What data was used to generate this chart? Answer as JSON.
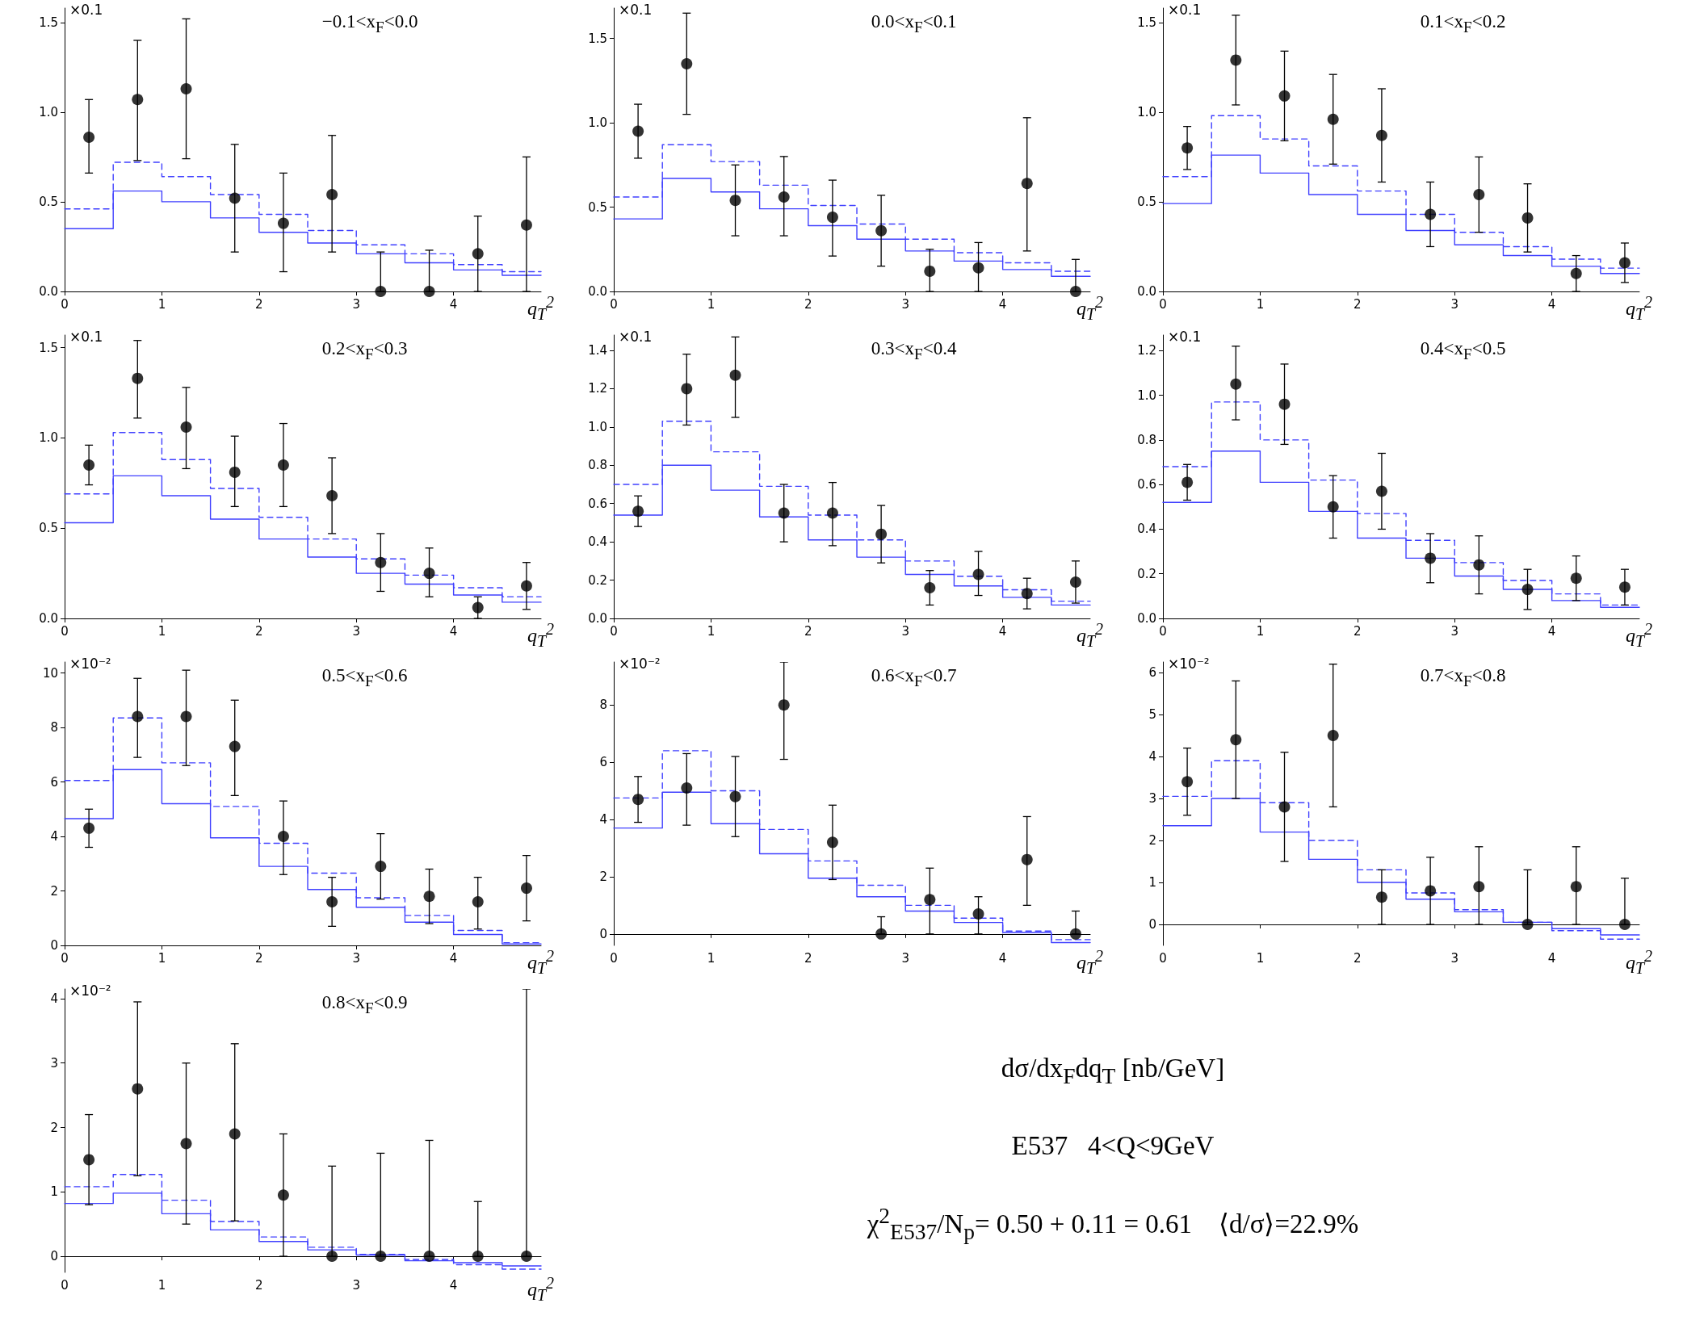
{
  "chart_data": [
    {
      "type": "scatter",
      "title": "−0.1<x$_{F}$<0.0",
      "xlabel": "q$_{T}$$^{2}$",
      "ylabel": "×0.1",
      "xlim": [
        0,
        4.9
      ],
      "xticks": [
        0,
        1,
        2,
        3,
        4
      ],
      "ylim": [
        0,
        1.58
      ],
      "yticks": [
        {
          "value": 0,
          "label": "0.0"
        },
        {
          "value": 0.5,
          "label": "0.5"
        },
        {
          "value": 1,
          "label": "1.0"
        },
        {
          "value": 1.5,
          "label": "1.5"
        }
      ],
      "x": [
        0.25,
        0.75,
        1.25,
        1.75,
        2.25,
        2.75,
        3.25,
        3.75,
        4.25,
        4.75
      ],
      "series": [
        {
          "type": "scatter",
          "marker": "circle",
          "color": "#000000",
          "values": [
            0.86,
            1.07,
            1.13,
            0.52,
            0.38,
            0.54,
            0,
            0,
            0.21,
            0.37
          ],
          "errors": [
            [
              0.66,
              1.07
            ],
            [
              0.73,
              1.4
            ],
            [
              0.74,
              1.52
            ],
            [
              0.22,
              0.82
            ],
            [
              0.11,
              0.66
            ],
            [
              0.22,
              0.87
            ],
            [
              0,
              0.22
            ],
            [
              0,
              0.23
            ],
            [
              0,
              0.42
            ],
            [
              0,
              0.75
            ]
          ]
        },
        {
          "type": "step",
          "color": "#4040ff",
          "line_style": "dashed",
          "x": [
            0,
            0.5,
            1,
            1.5,
            2,
            2.5,
            3,
            3.5,
            4,
            4.5,
            4.9
          ],
          "values": [
            0.46,
            0.72,
            0.64,
            0.54,
            0.43,
            0.34,
            0.26,
            0.21,
            0.15,
            0.11,
            0.11
          ]
        },
        {
          "type": "step",
          "color": "#4040ff",
          "line_style": "solid",
          "x": [
            0,
            0.5,
            1,
            1.5,
            2,
            2.5,
            3,
            3.5,
            4,
            4.5,
            4.9
          ],
          "values": [
            0.35,
            0.56,
            0.5,
            0.41,
            0.33,
            0.27,
            0.21,
            0.16,
            0.12,
            0.09,
            0.09
          ]
        }
      ]
    },
    {
      "type": "scatter",
      "title": "0.0<x$_{F}$<0.1",
      "xlabel": "q$_{T}$$^{2}$",
      "ylabel": "×0.1",
      "xlim": [
        0,
        4.9
      ],
      "xticks": [
        0,
        1,
        2,
        3,
        4
      ],
      "ylim": [
        0,
        1.68
      ],
      "yticks": [
        {
          "value": 0,
          "label": "0.0"
        },
        {
          "value": 0.5,
          "label": "0.5"
        },
        {
          "value": 1,
          "label": "1.0"
        },
        {
          "value": 1.5,
          "label": "1.5"
        }
      ],
      "x": [
        0.25,
        0.75,
        1.25,
        1.75,
        2.25,
        2.75,
        3.25,
        3.75,
        4.25,
        4.75
      ],
      "series": [
        {
          "type": "scatter",
          "marker": "circle",
          "color": "#000000",
          "values": [
            0.95,
            1.35,
            0.54,
            0.56,
            0.44,
            0.36,
            0.12,
            0.14,
            0.64,
            0
          ],
          "errors": [
            [
              0.79,
              1.11
            ],
            [
              1.05,
              1.65
            ],
            [
              0.33,
              0.75
            ],
            [
              0.33,
              0.8
            ],
            [
              0.21,
              0.66
            ],
            [
              0.15,
              0.57
            ],
            [
              0,
              0.25
            ],
            [
              0,
              0.29
            ],
            [
              0.24,
              1.03
            ],
            [
              0,
              0.19
            ]
          ]
        },
        {
          "type": "step",
          "color": "#4040ff",
          "line_style": "dashed",
          "x": [
            0,
            0.5,
            1,
            1.5,
            2,
            2.5,
            3,
            3.5,
            4,
            4.5,
            4.9
          ],
          "values": [
            0.56,
            0.87,
            0.77,
            0.63,
            0.51,
            0.4,
            0.31,
            0.23,
            0.17,
            0.12,
            0.12
          ]
        },
        {
          "type": "step",
          "color": "#4040ff",
          "line_style": "solid",
          "x": [
            0,
            0.5,
            1,
            1.5,
            2,
            2.5,
            3,
            3.5,
            4,
            4.5,
            4.9
          ],
          "values": [
            0.43,
            0.67,
            0.59,
            0.49,
            0.39,
            0.31,
            0.24,
            0.18,
            0.13,
            0.09,
            0.09
          ]
        }
      ]
    },
    {
      "type": "scatter",
      "title": "0.1<x$_{F}$<0.2",
      "xlabel": "q$_{T}$$^{2}$",
      "ylabel": "×0.1",
      "xlim": [
        0,
        4.9
      ],
      "xticks": [
        0,
        1,
        2,
        3,
        4
      ],
      "ylim": [
        0,
        1.58
      ],
      "yticks": [
        {
          "value": 0,
          "label": "0.0"
        },
        {
          "value": 0.5,
          "label": "0.5"
        },
        {
          "value": 1,
          "label": "1.0"
        },
        {
          "value": 1.5,
          "label": "1.5"
        }
      ],
      "x": [
        0.25,
        0.75,
        1.25,
        1.75,
        2.25,
        2.75,
        3.25,
        3.75,
        4.25,
        4.75
      ],
      "series": [
        {
          "type": "scatter",
          "marker": "circle",
          "color": "#000000",
          "values": [
            0.8,
            1.29,
            1.09,
            0.96,
            0.87,
            0.43,
            0.54,
            0.41,
            0.1,
            0.16
          ],
          "errors": [
            [
              0.68,
              0.92
            ],
            [
              1.04,
              1.54
            ],
            [
              0.84,
              1.34
            ],
            [
              0.71,
              1.21
            ],
            [
              0.61,
              1.13
            ],
            [
              0.25,
              0.61
            ],
            [
              0.33,
              0.75
            ],
            [
              0.22,
              0.6
            ],
            [
              0,
              0.2
            ],
            [
              0.05,
              0.27
            ]
          ]
        },
        {
          "type": "step",
          "color": "#4040ff",
          "line_style": "dashed",
          "x": [
            0,
            0.5,
            1,
            1.5,
            2,
            2.5,
            3,
            3.5,
            4,
            4.5,
            4.9
          ],
          "values": [
            0.64,
            0.98,
            0.85,
            0.7,
            0.56,
            0.43,
            0.33,
            0.25,
            0.18,
            0.13,
            0.13
          ]
        },
        {
          "type": "step",
          "color": "#4040ff",
          "line_style": "solid",
          "x": [
            0,
            0.5,
            1,
            1.5,
            2,
            2.5,
            3,
            3.5,
            4,
            4.5,
            4.9
          ],
          "values": [
            0.49,
            0.76,
            0.66,
            0.54,
            0.43,
            0.34,
            0.26,
            0.2,
            0.14,
            0.1,
            0.1
          ]
        }
      ]
    },
    {
      "type": "scatter",
      "title": "0.2<x$_{F}$<0.3",
      "xlabel": "q$_{T}$$^{2}$",
      "ylabel": "×0.1",
      "xlim": [
        0,
        4.9
      ],
      "xticks": [
        0,
        1,
        2,
        3,
        4
      ],
      "ylim": [
        0,
        1.57
      ],
      "yticks": [
        {
          "value": 0,
          "label": "0.0"
        },
        {
          "value": 0.5,
          "label": "0.5"
        },
        {
          "value": 1,
          "label": "1.0"
        },
        {
          "value": 1.5,
          "label": "1.5"
        }
      ],
      "x": [
        0.25,
        0.75,
        1.25,
        1.75,
        2.25,
        2.75,
        3.25,
        3.75,
        4.25,
        4.75
      ],
      "series": [
        {
          "type": "scatter",
          "marker": "circle",
          "color": "#000000",
          "values": [
            0.85,
            1.33,
            1.06,
            0.81,
            0.85,
            0.68,
            0.31,
            0.25,
            0.06,
            0.18
          ],
          "errors": [
            [
              0.74,
              0.96
            ],
            [
              1.11,
              1.54
            ],
            [
              0.83,
              1.28
            ],
            [
              0.62,
              1.01
            ],
            [
              0.62,
              1.08
            ],
            [
              0.47,
              0.89
            ],
            [
              0.15,
              0.47
            ],
            [
              0.12,
              0.39
            ],
            [
              0,
              0.12
            ],
            [
              0.05,
              0.31
            ]
          ]
        },
        {
          "type": "step",
          "color": "#4040ff",
          "line_style": "dashed",
          "x": [
            0,
            0.5,
            1,
            1.5,
            2,
            2.5,
            3,
            3.5,
            4,
            4.5,
            4.9
          ],
          "values": [
            0.69,
            1.03,
            0.88,
            0.72,
            0.56,
            0.44,
            0.33,
            0.24,
            0.17,
            0.12,
            0.12
          ]
        },
        {
          "type": "step",
          "color": "#4040ff",
          "line_style": "solid",
          "x": [
            0,
            0.5,
            1,
            1.5,
            2,
            2.5,
            3,
            3.5,
            4,
            4.5,
            4.9
          ],
          "values": [
            0.53,
            0.79,
            0.68,
            0.55,
            0.44,
            0.34,
            0.25,
            0.19,
            0.13,
            0.09,
            0.09
          ]
        }
      ]
    },
    {
      "type": "scatter",
      "title": "0.3<x$_{F}$<0.4",
      "xlabel": "q$_{T}$$^{2}$",
      "ylabel": "×0.1",
      "xlim": [
        0,
        4.9
      ],
      "xticks": [
        0,
        1,
        2,
        3,
        4
      ],
      "ylim": [
        0,
        1.48
      ],
      "yticks": [
        {
          "value": 0,
          "label": "0.0"
        },
        {
          "value": 0.2,
          "label": "0.2"
        },
        {
          "value": 0.4,
          "label": "0.4"
        },
        {
          "value": 0.6,
          "label": "0.6"
        },
        {
          "value": 0.8,
          "label": "0.8"
        },
        {
          "value": 1,
          "label": "1.0"
        },
        {
          "value": 1.2,
          "label": "1.2"
        },
        {
          "value": 1.4,
          "label": "1.4"
        }
      ],
      "x": [
        0.25,
        0.75,
        1.25,
        1.75,
        2.25,
        2.75,
        3.25,
        3.75,
        4.25,
        4.75
      ],
      "series": [
        {
          "type": "scatter",
          "marker": "circle",
          "color": "#000000",
          "values": [
            0.56,
            1.2,
            1.27,
            0.55,
            0.55,
            0.44,
            0.16,
            0.23,
            0.13,
            0.19
          ],
          "errors": [
            [
              0.48,
              0.64
            ],
            [
              1.01,
              1.38
            ],
            [
              1.05,
              1.47
            ],
            [
              0.4,
              0.7
            ],
            [
              0.38,
              0.71
            ],
            [
              0.29,
              0.59
            ],
            [
              0.07,
              0.25
            ],
            [
              0.12,
              0.35
            ],
            [
              0.05,
              0.21
            ],
            [
              0.08,
              0.3
            ]
          ]
        },
        {
          "type": "step",
          "color": "#4040ff",
          "line_style": "dashed",
          "x": [
            0,
            0.5,
            1,
            1.5,
            2,
            2.5,
            3,
            3.5,
            4,
            4.5,
            4.9
          ],
          "values": [
            0.7,
            1.03,
            0.87,
            0.69,
            0.54,
            0.41,
            0.3,
            0.22,
            0.15,
            0.09,
            0.09
          ]
        },
        {
          "type": "step",
          "color": "#4040ff",
          "line_style": "solid",
          "x": [
            0,
            0.5,
            1,
            1.5,
            2,
            2.5,
            3,
            3.5,
            4,
            4.5,
            4.9
          ],
          "values": [
            0.54,
            0.8,
            0.67,
            0.53,
            0.41,
            0.32,
            0.23,
            0.17,
            0.11,
            0.07,
            0.07
          ]
        }
      ]
    },
    {
      "type": "scatter",
      "title": "0.4<x$_{F}$<0.5",
      "xlabel": "q$_{T}$$^{2}$",
      "ylabel": "×0.1",
      "xlim": [
        0,
        4.9
      ],
      "xticks": [
        0,
        1,
        2,
        3,
        4
      ],
      "ylim": [
        0,
        1.27
      ],
      "yticks": [
        {
          "value": 0,
          "label": "0.0"
        },
        {
          "value": 0.2,
          "label": "0.2"
        },
        {
          "value": 0.4,
          "label": "0.4"
        },
        {
          "value": 0.6,
          "label": "0.6"
        },
        {
          "value": 0.8,
          "label": "0.8"
        },
        {
          "value": 1,
          "label": "1.0"
        },
        {
          "value": 1.2,
          "label": "1.2"
        }
      ],
      "x": [
        0.25,
        0.75,
        1.25,
        1.75,
        2.25,
        2.75,
        3.25,
        3.75,
        4.25,
        4.75
      ],
      "series": [
        {
          "type": "scatter",
          "marker": "circle",
          "color": "#000000",
          "values": [
            0.61,
            1.05,
            0.96,
            0.5,
            0.57,
            0.27,
            0.24,
            0.13,
            0.18,
            0.14
          ],
          "errors": [
            [
              0.53,
              0.69
            ],
            [
              0.89,
              1.22
            ],
            [
              0.78,
              1.14
            ],
            [
              0.36,
              0.64
            ],
            [
              0.4,
              0.74
            ],
            [
              0.16,
              0.38
            ],
            [
              0.11,
              0.37
            ],
            [
              0.04,
              0.22
            ],
            [
              0.08,
              0.28
            ],
            [
              0.06,
              0.22
            ]
          ]
        },
        {
          "type": "step",
          "color": "#4040ff",
          "line_style": "dashed",
          "x": [
            0,
            0.5,
            1,
            1.5,
            2,
            2.5,
            3,
            3.5,
            4,
            4.5,
            4.9
          ],
          "values": [
            0.68,
            0.97,
            0.8,
            0.62,
            0.47,
            0.35,
            0.25,
            0.17,
            0.11,
            0.06,
            0.06
          ]
        },
        {
          "type": "step",
          "color": "#4040ff",
          "line_style": "solid",
          "x": [
            0,
            0.5,
            1,
            1.5,
            2,
            2.5,
            3,
            3.5,
            4,
            4.5,
            4.9
          ],
          "values": [
            0.52,
            0.75,
            0.61,
            0.48,
            0.36,
            0.27,
            0.19,
            0.13,
            0.08,
            0.05,
            0.05
          ]
        }
      ]
    },
    {
      "type": "scatter",
      "title": "0.5<x$_{F}$<0.6",
      "xlabel": "q$_{T}$$^{2}$",
      "ylabel": "×10⁻²",
      "xlim": [
        0,
        4.9
      ],
      "xticks": [
        0,
        1,
        2,
        3,
        4
      ],
      "ylim": [
        0,
        10.4
      ],
      "yticks": [
        0,
        2,
        4,
        6,
        8,
        10
      ],
      "x": [
        0.25,
        0.75,
        1.25,
        1.75,
        2.25,
        2.75,
        3.25,
        3.75,
        4.25,
        4.75
      ],
      "series": [
        {
          "type": "scatter",
          "marker": "circle",
          "color": "#000000",
          "values": [
            4.3,
            8.4,
            8.4,
            7.3,
            4.0,
            1.6,
            2.9,
            1.8,
            1.6,
            2.1
          ],
          "errors": [
            [
              3.6,
              5.0
            ],
            [
              6.9,
              9.8
            ],
            [
              6.6,
              10.1
            ],
            [
              5.5,
              9.0
            ],
            [
              2.6,
              5.3
            ],
            [
              0.7,
              2.5
            ],
            [
              1.7,
              4.1
            ],
            [
              0.8,
              2.8
            ],
            [
              0.6,
              2.5
            ],
            [
              0.9,
              3.3
            ]
          ]
        },
        {
          "type": "step",
          "color": "#4040ff",
          "line_style": "dashed",
          "x": [
            0,
            0.5,
            1,
            1.5,
            2,
            2.5,
            3,
            3.5,
            4,
            4.5,
            4.9
          ],
          "values": [
            6.05,
            8.35,
            6.7,
            5.1,
            3.75,
            2.65,
            1.75,
            1.1,
            0.55,
            0.1,
            0.1
          ]
        },
        {
          "type": "step",
          "color": "#4040ff",
          "line_style": "solid",
          "x": [
            0,
            0.5,
            1,
            1.5,
            2,
            2.5,
            3,
            3.5,
            4,
            4.5,
            4.9
          ],
          "values": [
            4.65,
            6.45,
            5.2,
            3.95,
            2.9,
            2.05,
            1.4,
            0.85,
            0.4,
            0.05,
            0.05
          ]
        }
      ]
    },
    {
      "type": "scatter",
      "title": "0.6<x$_{F}$<0.7",
      "xlabel": "q$_{T}$$^{2}$",
      "ylabel": "×10⁻²",
      "xlim": [
        0,
        4.9
      ],
      "xticks": [
        0,
        1,
        2,
        3,
        4
      ],
      "ylim": [
        -0.4,
        9.5
      ],
      "yticks": [
        0,
        2,
        4,
        6,
        8
      ],
      "x": [
        0.25,
        0.75,
        1.25,
        1.75,
        2.25,
        2.75,
        3.25,
        3.75,
        4.25,
        4.75
      ],
      "series": [
        {
          "type": "scatter",
          "marker": "circle",
          "color": "#000000",
          "values": [
            4.7,
            5.1,
            4.8,
            8.0,
            3.2,
            0,
            1.2,
            0.7,
            2.6,
            0
          ],
          "errors": [
            [
              3.9,
              5.5
            ],
            [
              3.8,
              6.3
            ],
            [
              3.4,
              6.2
            ],
            [
              6.1,
              9.5
            ],
            [
              1.9,
              4.5
            ],
            [
              0,
              0.6
            ],
            [
              0,
              2.3
            ],
            [
              0,
              1.3
            ],
            [
              1.0,
              4.1
            ],
            [
              0,
              0.8
            ]
          ]
        },
        {
          "type": "step",
          "color": "#4040ff",
          "line_style": "dashed",
          "x": [
            0,
            0.5,
            1,
            1.5,
            2,
            2.5,
            3,
            3.5,
            4,
            4.5,
            4.9
          ],
          "values": [
            4.75,
            6.4,
            5.0,
            3.65,
            2.55,
            1.7,
            1.0,
            0.55,
            0.1,
            -0.2,
            -0.2
          ]
        },
        {
          "type": "step",
          "color": "#4040ff",
          "line_style": "solid",
          "x": [
            0,
            0.5,
            1,
            1.5,
            2,
            2.5,
            3,
            3.5,
            4,
            4.5,
            4.9
          ],
          "values": [
            3.7,
            4.95,
            3.85,
            2.8,
            1.95,
            1.3,
            0.8,
            0.4,
            0.05,
            -0.3,
            -0.3
          ]
        }
      ]
    },
    {
      "type": "scatter",
      "title": "0.7<x$_{F}$<0.8",
      "xlabel": "q$_{T}$$^{2}$",
      "ylabel": "×10⁻²",
      "xlim": [
        0,
        4.9
      ],
      "xticks": [
        0,
        1,
        2,
        3,
        4
      ],
      "ylim": [
        -0.5,
        6.25
      ],
      "yticks": [
        0,
        1,
        2,
        3,
        4,
        5,
        6
      ],
      "x": [
        0.25,
        0.75,
        1.25,
        1.75,
        2.25,
        2.75,
        3.25,
        3.75,
        4.25,
        4.75
      ],
      "series": [
        {
          "type": "scatter",
          "marker": "circle",
          "color": "#000000",
          "values": [
            3.4,
            4.4,
            2.8,
            4.5,
            0.65,
            0.8,
            0.9,
            0,
            0.9,
            0
          ],
          "errors": [
            [
              2.6,
              4.2
            ],
            [
              3.0,
              5.8
            ],
            [
              1.5,
              4.1
            ],
            [
              2.8,
              6.2
            ],
            [
              0,
              1.3
            ],
            [
              0,
              1.6
            ],
            [
              0,
              1.85
            ],
            [
              0,
              1.3
            ],
            [
              0,
              1.85
            ],
            [
              0,
              1.1
            ]
          ]
        },
        {
          "type": "step",
          "color": "#4040ff",
          "line_style": "dashed",
          "x": [
            0,
            0.5,
            1,
            1.5,
            2,
            2.5,
            3,
            3.5,
            4,
            4.5,
            4.9
          ],
          "values": [
            3.05,
            3.9,
            2.9,
            2.0,
            1.3,
            0.75,
            0.35,
            0.05,
            -0.15,
            -0.35,
            -0.35
          ]
        },
        {
          "type": "step",
          "color": "#4040ff",
          "line_style": "solid",
          "x": [
            0,
            0.5,
            1,
            1.5,
            2,
            2.5,
            3,
            3.5,
            4,
            4.5,
            4.9
          ],
          "values": [
            2.35,
            3.0,
            2.2,
            1.55,
            1.0,
            0.6,
            0.3,
            0.05,
            -0.1,
            -0.25,
            -0.25
          ]
        }
      ]
    },
    {
      "type": "scatter",
      "title": "0.8<x$_{F}$<0.9",
      "xlabel": "q$_{T}$$^{2}$",
      "ylabel": "×10⁻²",
      "xlim": [
        0,
        4.9
      ],
      "xticks": [
        0,
        1,
        2,
        3,
        4
      ],
      "ylim": [
        -0.25,
        4.15
      ],
      "yticks": [
        0,
        1,
        2,
        3,
        4
      ],
      "x": [
        0.25,
        0.75,
        1.25,
        1.75,
        2.25,
        2.75,
        3.25,
        3.75,
        4.25,
        4.75
      ],
      "series": [
        {
          "type": "scatter",
          "marker": "circle",
          "color": "#000000",
          "values": [
            1.5,
            2.6,
            1.75,
            1.9,
            0.95,
            0,
            0,
            0,
            0,
            0
          ],
          "errors": [
            [
              0.8,
              2.2
            ],
            [
              1.25,
              3.95
            ],
            [
              0.5,
              3.0
            ],
            [
              0.55,
              3.3
            ],
            [
              0,
              1.9
            ],
            [
              0,
              1.4
            ],
            [
              0,
              1.6
            ],
            [
              0,
              1.8
            ],
            [
              0,
              0.85
            ],
            [
              0,
              4.15
            ]
          ]
        },
        {
          "type": "step",
          "color": "#4040ff",
          "line_style": "dashed",
          "x": [
            0,
            0.5,
            1,
            1.5,
            2,
            2.5,
            3,
            3.5,
            4,
            4.5,
            4.9
          ],
          "values": [
            1.08,
            1.27,
            0.87,
            0.54,
            0.3,
            0.14,
            0.03,
            -0.05,
            -0.13,
            -0.2,
            -0.2
          ]
        },
        {
          "type": "step",
          "color": "#4040ff",
          "line_style": "solid",
          "x": [
            0,
            0.5,
            1,
            1.5,
            2,
            2.5,
            3,
            3.5,
            4,
            4.5,
            4.9
          ],
          "values": [
            0.82,
            0.98,
            0.66,
            0.41,
            0.23,
            0.1,
            0.02,
            -0.07,
            -0.1,
            -0.15,
            -0.15
          ]
        }
      ]
    },
    {
      "type": "other",
      "title": "dσ/dx$_{F}$dq$_{T}$ [nb/GeV]",
      "annotations": [
        "E537   4<Q<9GeV",
        "χ$^{2}$$_{E537}$/N$_{p}$= 0.50 + 0.11 = 0.61    ⟨d/σ⟩=22.9%"
      ]
    }
  ]
}
